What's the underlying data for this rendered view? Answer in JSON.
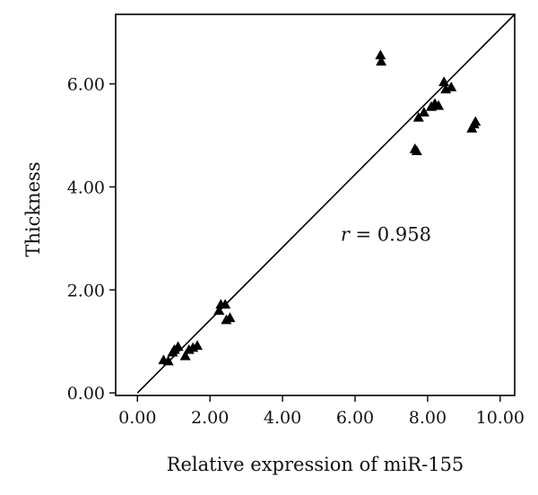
{
  "chart_data": {
    "type": "scatter",
    "xlabel": "Relative expression of miR-155",
    "ylabel": "Thickness",
    "xlim": [
      -0.6,
      10.4
    ],
    "ylim": [
      -0.05,
      7.35
    ],
    "xticks": [
      0,
      2,
      4,
      6,
      8,
      10
    ],
    "yticks": [
      0,
      2,
      4,
      6
    ],
    "xtick_labels": [
      "0.00",
      "2.00",
      "4.00",
      "6.00",
      "8.00",
      "10.00"
    ],
    "ytick_labels": [
      "0.00",
      "2.00",
      "4.00",
      "6.00"
    ],
    "marker": "triangle",
    "annotation": {
      "label": "r",
      "text": " = 0.958",
      "position": [
        5.6,
        2.95
      ]
    },
    "fit_line": {
      "x": [
        0,
        10.4
      ],
      "y": [
        0,
        7.35
      ]
    },
    "grid": false,
    "legend": "none",
    "series": [
      {
        "points": [
          [
            0.72,
            0.64
          ],
          [
            0.85,
            0.62
          ],
          [
            0.97,
            0.79
          ],
          [
            1.02,
            0.84
          ],
          [
            1.12,
            0.9
          ],
          [
            1.32,
            0.72
          ],
          [
            1.42,
            0.84
          ],
          [
            1.53,
            0.88
          ],
          [
            1.65,
            0.92
          ],
          [
            2.25,
            1.6
          ],
          [
            2.3,
            1.72
          ],
          [
            2.42,
            1.72
          ],
          [
            2.45,
            1.42
          ],
          [
            2.55,
            1.46
          ],
          [
            6.7,
            6.56
          ],
          [
            6.72,
            6.44
          ],
          [
            7.65,
            4.74
          ],
          [
            7.7,
            4.7
          ],
          [
            7.75,
            5.35
          ],
          [
            7.9,
            5.45
          ],
          [
            8.1,
            5.56
          ],
          [
            8.2,
            5.62
          ],
          [
            8.3,
            5.58
          ],
          [
            8.45,
            6.04
          ],
          [
            8.5,
            5.9
          ],
          [
            8.65,
            5.94
          ],
          [
            9.22,
            5.14
          ],
          [
            9.28,
            5.22
          ],
          [
            9.32,
            5.27
          ]
        ]
      }
    ]
  }
}
